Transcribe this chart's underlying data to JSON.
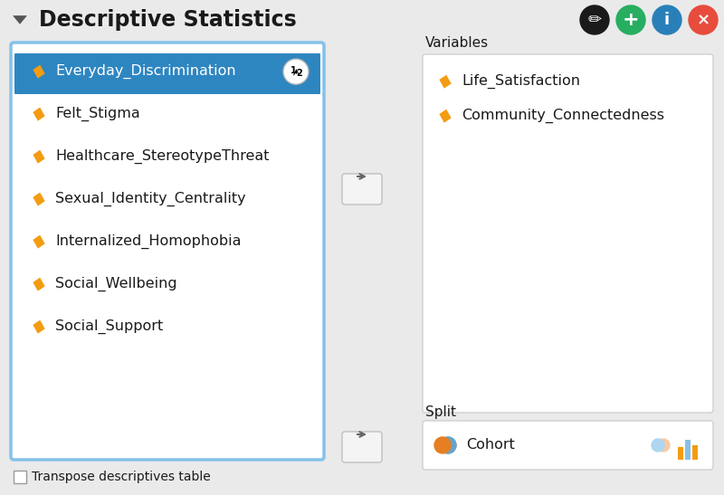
{
  "title": "Descriptive Statistics",
  "bg_color": "#eaeaea",
  "white": "#ffffff",
  "border_blue": "#85c1e9",
  "selected_blue": "#2e86c1",
  "orange": "#f39c12",
  "text_dark": "#1a1a1a",
  "text_gray": "#444444",
  "left_box": {
    "items": [
      "Everyday_Discrimination",
      "Felt_Stigma",
      "Healthcare_StereotypeThreat",
      "Sexual_Identity_Centrality",
      "Internalized_Homophobia",
      "Social_Wellbeing",
      "Social_Support"
    ],
    "selected_index": 0
  },
  "variables_items": [
    "Life_Satisfaction",
    "Community_Connectedness"
  ],
  "split_item": "Cohort",
  "checkbox_text": "Transpose descriptives table",
  "top_buttons": {
    "colors": [
      "#1a1a1a",
      "#27ae60",
      "#2980b9",
      "#e74c3c"
    ],
    "labels": [
      "✏",
      "+",
      "i",
      "×"
    ]
  }
}
